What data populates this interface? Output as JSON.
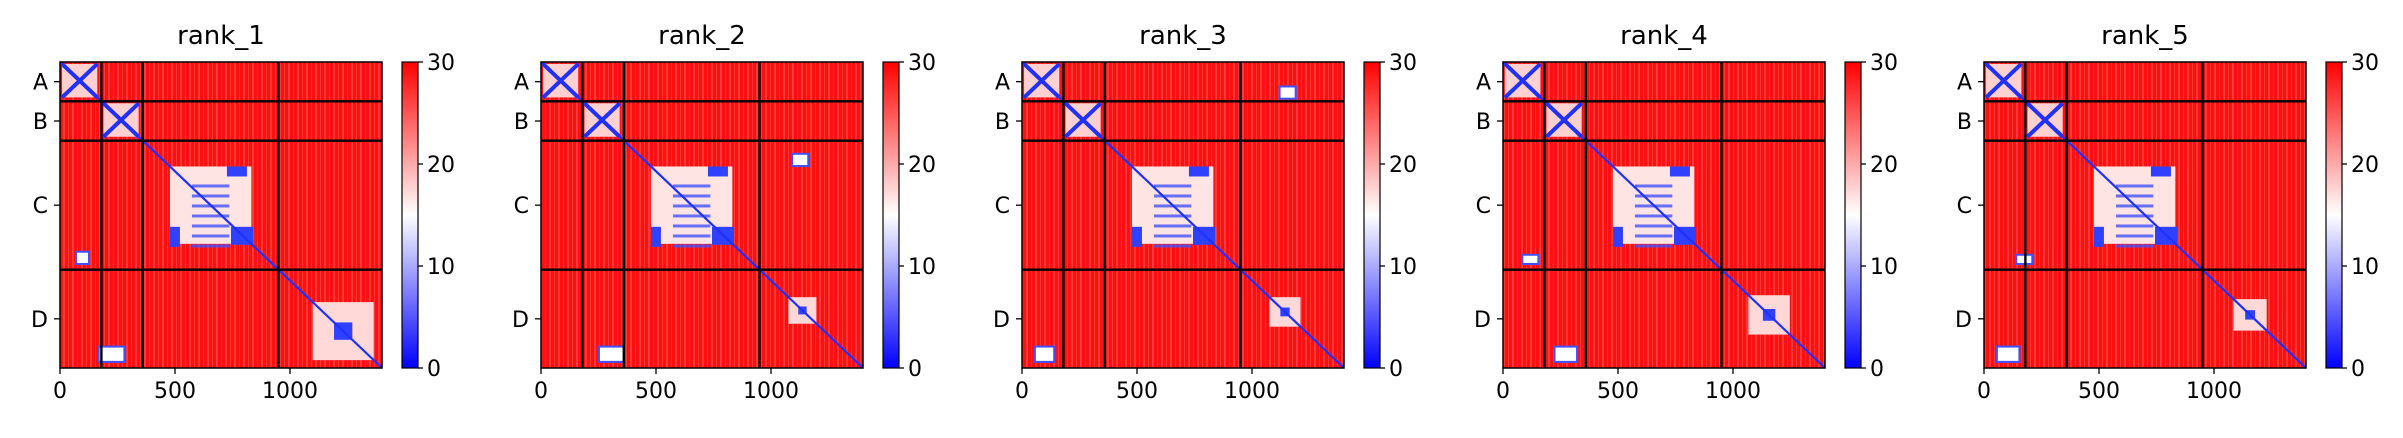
{
  "chart_data": {
    "type": "heatmap",
    "colormap": {
      "name": "bwr",
      "low": "#0000ff",
      "mid": "#ffffff",
      "high": "#ff0000"
    },
    "colorbar": {
      "range": [
        0,
        30
      ],
      "ticks": [
        "0",
        "10",
        "20",
        "30"
      ]
    },
    "x_ticks": [
      {
        "value": 0,
        "label": "0"
      },
      {
        "value": 500,
        "label": "500"
      },
      {
        "value": 1000,
        "label": "1000"
      }
    ],
    "xlim": [
      0,
      1400
    ],
    "chain_boundaries": [
      0,
      180,
      360,
      950,
      1400
    ],
    "chains": [
      "A",
      "B",
      "C",
      "D"
    ],
    "panels": [
      {
        "title": "rank_1"
      },
      {
        "title": "rank_2"
      },
      {
        "title": "rank_3"
      },
      {
        "title": "rank_4"
      },
      {
        "title": "rank_5"
      }
    ]
  }
}
